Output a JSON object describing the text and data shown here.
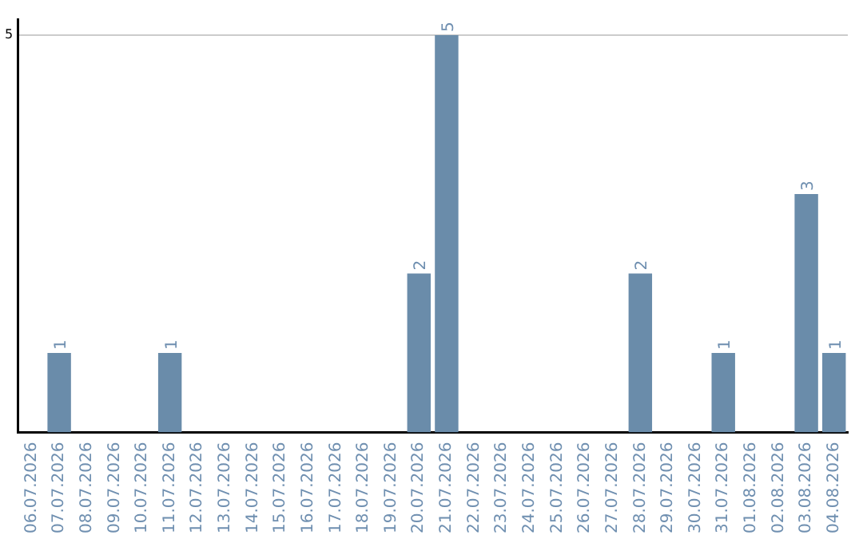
{
  "chart_data": {
    "type": "bar",
    "categories": [
      "06.07.2026",
      "07.07.2026",
      "08.07.2026",
      "09.07.2026",
      "10.07.2026",
      "11.07.2026",
      "12.07.2026",
      "13.07.2026",
      "14.07.2026",
      "15.07.2026",
      "16.07.2026",
      "17.07.2026",
      "18.07.2026",
      "19.07.2026",
      "20.07.2026",
      "21.07.2026",
      "22.07.2026",
      "23.07.2026",
      "24.07.2026",
      "25.07.2026",
      "26.07.2026",
      "27.07.2026",
      "28.07.2026",
      "29.07.2026",
      "30.07.2026",
      "31.07.2026",
      "01.08.2026",
      "02.08.2026",
      "03.08.2026",
      "04.08.2026"
    ],
    "values": [
      0,
      1,
      0,
      0,
      0,
      1,
      0,
      0,
      0,
      0,
      0,
      0,
      0,
      0,
      2,
      5,
      0,
      0,
      0,
      0,
      0,
      0,
      2,
      0,
      0,
      1,
      0,
      0,
      3,
      1
    ],
    "value_labels": [
      null,
      "1",
      null,
      null,
      null,
      "1",
      null,
      null,
      null,
      null,
      null,
      null,
      null,
      null,
      "2",
      "5",
      null,
      null,
      null,
      null,
      null,
      null,
      "2",
      null,
      null,
      "1",
      null,
      null,
      "3",
      "1"
    ],
    "color": "#6a8caa",
    "ylim": [
      0,
      5.2
    ],
    "yticks": [
      5
    ],
    "grid": "y",
    "legend": false
  }
}
